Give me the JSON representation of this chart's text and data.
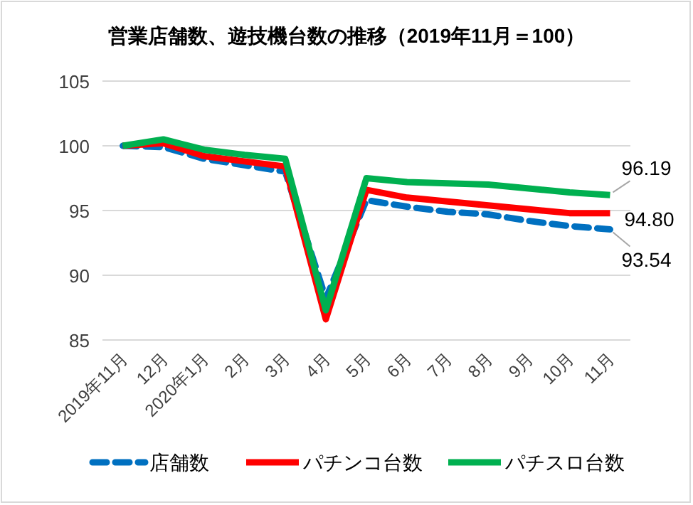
{
  "chart_data": {
    "type": "line",
    "title": "営業店舗数、遊技機台数の推移（2019年11月＝100）",
    "categories": [
      "2019年11月",
      "12月",
      "2020年1月",
      "2月",
      "3月",
      "4月",
      "5月",
      "6月",
      "7月",
      "8月",
      "9月",
      "10月",
      "11月"
    ],
    "series": [
      {
        "name": "店舗数",
        "color": "#0070c0",
        "line_style": "dashed",
        "values": [
          100,
          99.9,
          99.0,
          98.5,
          98.0,
          88.2,
          95.8,
          95.3,
          94.9,
          94.7,
          94.2,
          93.8,
          93.54
        ],
        "value_labels": [
          null,
          null,
          null,
          null,
          null,
          null,
          null,
          null,
          null,
          null,
          null,
          null,
          "93.54"
        ]
      },
      {
        "name": "パチンコ台数",
        "color": "#ff0000",
        "values": [
          100,
          100.2,
          99.2,
          98.8,
          98.4,
          86.6,
          96.6,
          96.0,
          95.7,
          95.4,
          95.1,
          94.8,
          94.8
        ],
        "value_labels": [
          null,
          null,
          null,
          null,
          null,
          null,
          null,
          null,
          null,
          null,
          null,
          null,
          "94.80"
        ]
      },
      {
        "name": "パチスロ台数",
        "color": "#00b050",
        "values": [
          100,
          100.5,
          99.7,
          99.3,
          99.0,
          87.3,
          97.5,
          97.2,
          97.1,
          97.0,
          96.7,
          96.4,
          96.19
        ],
        "value_labels": [
          null,
          null,
          null,
          null,
          null,
          null,
          null,
          null,
          null,
          null,
          null,
          null,
          "96.19"
        ]
      }
    ],
    "ylim": [
      85,
      105
    ],
    "yticks": [
      85,
      90,
      95,
      100,
      105
    ],
    "grid": "y",
    "legend": "bottom",
    "marker": "none",
    "line_style": "solid"
  }
}
